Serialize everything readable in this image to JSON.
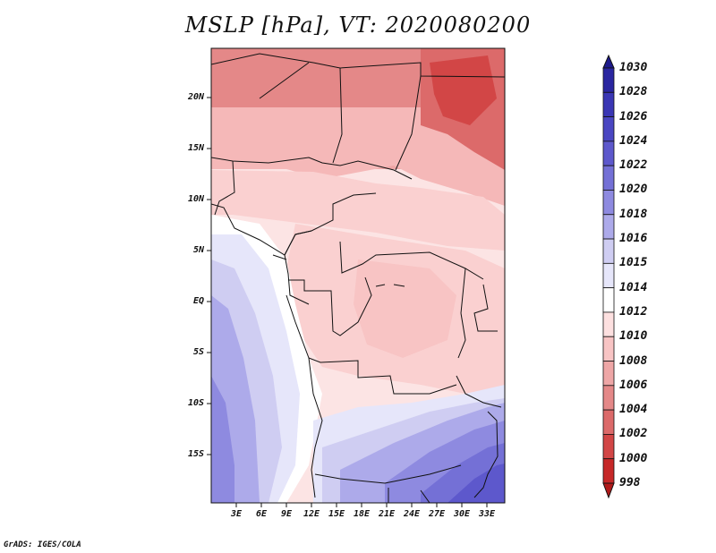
{
  "title": "MSLP [hPa], VT: 2020080200",
  "footer": "GrADS: IGES/COLA",
  "map": {
    "variable": "MSLP",
    "units": "hPa",
    "valid_time": "2020080200",
    "lat_labels": [
      "20N",
      "15N",
      "10N",
      "5N",
      "EQ",
      "5S",
      "10S",
      "15S"
    ],
    "lon_labels": [
      "3E",
      "6E",
      "9E",
      "12E",
      "15E",
      "18E",
      "21E",
      "24E",
      "27E",
      "30E",
      "33E"
    ]
  },
  "colorbar": {
    "levels": [
      "1030",
      "1028",
      "1026",
      "1024",
      "1022",
      "1020",
      "1018",
      "1016",
      "1015",
      "1014",
      "1012",
      "1010",
      "1008",
      "1006",
      "1004",
      "1002",
      "1000",
      "998"
    ],
    "colors": [
      "#1e1a8c",
      "#2a26a0",
      "#3a36b4",
      "#4a46c2",
      "#5d58cc",
      "#7470d6",
      "#8e8ae0",
      "#adaaea",
      "#cfcdf2",
      "#e6e6fa",
      "#ffffff",
      "#fde0e0",
      "#f8c4c4",
      "#eea6a6",
      "#e48888",
      "#dc6a6a",
      "#d24646",
      "#c62828",
      "#b01a1a"
    ]
  }
}
